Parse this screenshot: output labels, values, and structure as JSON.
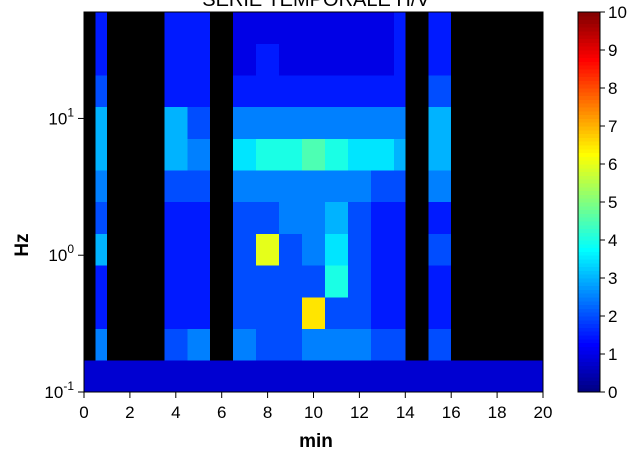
{
  "chart_data": {
    "type": "heatmap",
    "title": "SERIE TEMPORALE H/V",
    "xlabel": "min",
    "ylabel": "Hz",
    "colormap": "jet",
    "background": "#000000",
    "log_y": true,
    "x_bins": [
      0,
      0.5,
      1,
      3.5,
      4.5,
      5.5,
      6.5,
      7.5,
      8.5,
      9.5,
      10.5,
      11.5,
      12.5,
      13.5,
      14,
      15,
      16,
      20
    ],
    "y_bins": [
      0.1,
      0.17,
      0.29,
      0.49,
      0.84,
      1.43,
      2.44,
      4.16,
      7.08,
      12.1,
      20.6,
      35.1,
      60
    ],
    "z": [
      [
        0.8,
        0.8,
        0.8,
        0.8,
        0.8,
        0.8,
        0.8,
        0.8,
        0.8,
        0.8,
        0.8,
        0.8,
        0.8,
        0.8,
        0.8,
        0.8,
        0.8
      ],
      [
        null,
        2.5,
        null,
        2,
        2.5,
        null,
        2.5,
        2,
        2,
        2.5,
        2.5,
        2.5,
        2,
        2,
        null,
        2,
        null
      ],
      [
        null,
        1.5,
        null,
        1.5,
        1.5,
        null,
        2,
        2,
        2,
        6.5,
        2,
        2,
        1.5,
        1.5,
        null,
        1.5,
        null
      ],
      [
        null,
        1.5,
        null,
        1.5,
        1.5,
        null,
        2,
        2,
        2,
        2,
        4,
        2,
        1.5,
        1.5,
        null,
        1.5,
        null
      ],
      [
        null,
        3,
        null,
        1.5,
        1.5,
        null,
        2,
        6,
        2,
        2.5,
        3.5,
        2,
        1.5,
        1.5,
        null,
        2,
        null
      ],
      [
        null,
        2,
        null,
        1.5,
        1.5,
        null,
        2,
        2,
        2.5,
        2.5,
        3,
        2,
        1.5,
        1.5,
        null,
        1.5,
        null
      ],
      [
        null,
        2.5,
        null,
        2,
        2,
        null,
        2.5,
        2.5,
        2.5,
        2.5,
        2.5,
        2.5,
        2,
        2,
        null,
        2.5,
        null
      ],
      [
        null,
        3,
        null,
        3,
        2.5,
        null,
        3.5,
        4,
        4,
        4.5,
        4,
        3.5,
        3.5,
        3,
        null,
        3,
        null
      ],
      [
        null,
        3,
        null,
        3,
        2,
        null,
        2.5,
        2.5,
        2.5,
        2.5,
        2.5,
        2.5,
        2.5,
        2.5,
        null,
        3,
        null
      ],
      [
        null,
        2,
        null,
        1.5,
        1.5,
        null,
        1.5,
        1.5,
        1.5,
        1.5,
        1.5,
        1.5,
        1.5,
        1.5,
        null,
        2,
        null
      ],
      [
        null,
        1.5,
        null,
        1.5,
        1.5,
        null,
        1,
        1.5,
        1,
        1,
        1,
        1,
        1,
        1.5,
        null,
        1.5,
        null
      ],
      [
        null,
        1.5,
        null,
        1.5,
        1.5,
        null,
        1,
        1,
        1,
        1,
        1,
        1,
        1,
        1.5,
        null,
        1.5,
        null
      ]
    ],
    "xlim": [
      0,
      20
    ],
    "xticks": [
      0,
      2,
      4,
      6,
      8,
      10,
      12,
      14,
      16,
      18,
      20
    ],
    "ylim": [
      0.1,
      60
    ],
    "yticks": [
      {
        "value": 0.1,
        "label": "10",
        "exponent": "-1"
      },
      {
        "value": 1,
        "label": "10",
        "exponent": "0"
      },
      {
        "value": 10,
        "label": "10",
        "exponent": "1"
      }
    ],
    "clim": [
      0,
      10
    ],
    "cticks": [
      0,
      1,
      2,
      3,
      4,
      5,
      6,
      7,
      8,
      9,
      10
    ]
  }
}
